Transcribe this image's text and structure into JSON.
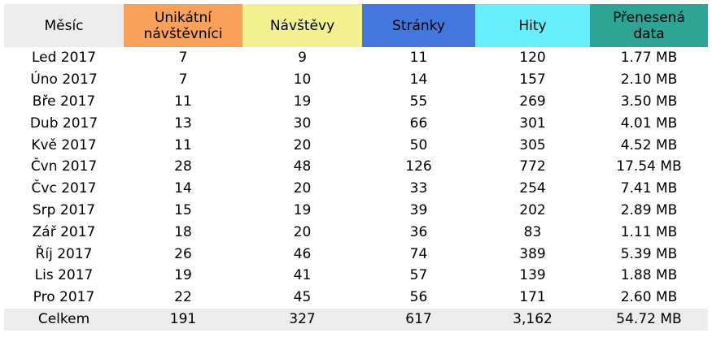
{
  "table": {
    "header": [
      "Měsíc",
      "Unikátní návštěvníci",
      "Návštěvy",
      "Stránky",
      "Hity",
      "Přenesená data"
    ],
    "rows": [
      [
        "Led 2017",
        "7",
        "9",
        "11",
        "120",
        "1.77 MB"
      ],
      [
        "Úno 2017",
        "7",
        "10",
        "14",
        "157",
        "2.10 MB"
      ],
      [
        "Bře 2017",
        "11",
        "19",
        "55",
        "269",
        "3.50 MB"
      ],
      [
        "Dub 2017",
        "13",
        "30",
        "66",
        "301",
        "4.01 MB"
      ],
      [
        "Kvě 2017",
        "11",
        "20",
        "50",
        "305",
        "4.52 MB"
      ],
      [
        "Čvn 2017",
        "28",
        "48",
        "126",
        "772",
        "17.54 MB"
      ],
      [
        "Čvc 2017",
        "14",
        "20",
        "33",
        "254",
        "7.41 MB"
      ],
      [
        "Srp 2017",
        "15",
        "19",
        "39",
        "202",
        "2.89 MB"
      ],
      [
        "Zář 2017",
        "18",
        "20",
        "36",
        "83",
        "1.11 MB"
      ],
      [
        "Říj 2017",
        "26",
        "46",
        "74",
        "389",
        "5.39 MB"
      ],
      [
        "Lis 2017",
        "19",
        "41",
        "57",
        "139",
        "1.88 MB"
      ],
      [
        "Pro 2017",
        "22",
        "45",
        "56",
        "171",
        "2.60 MB"
      ]
    ],
    "total": [
      "Celkem",
      "191",
      "327",
      "617",
      "3,162",
      "54.72 MB"
    ]
  }
}
